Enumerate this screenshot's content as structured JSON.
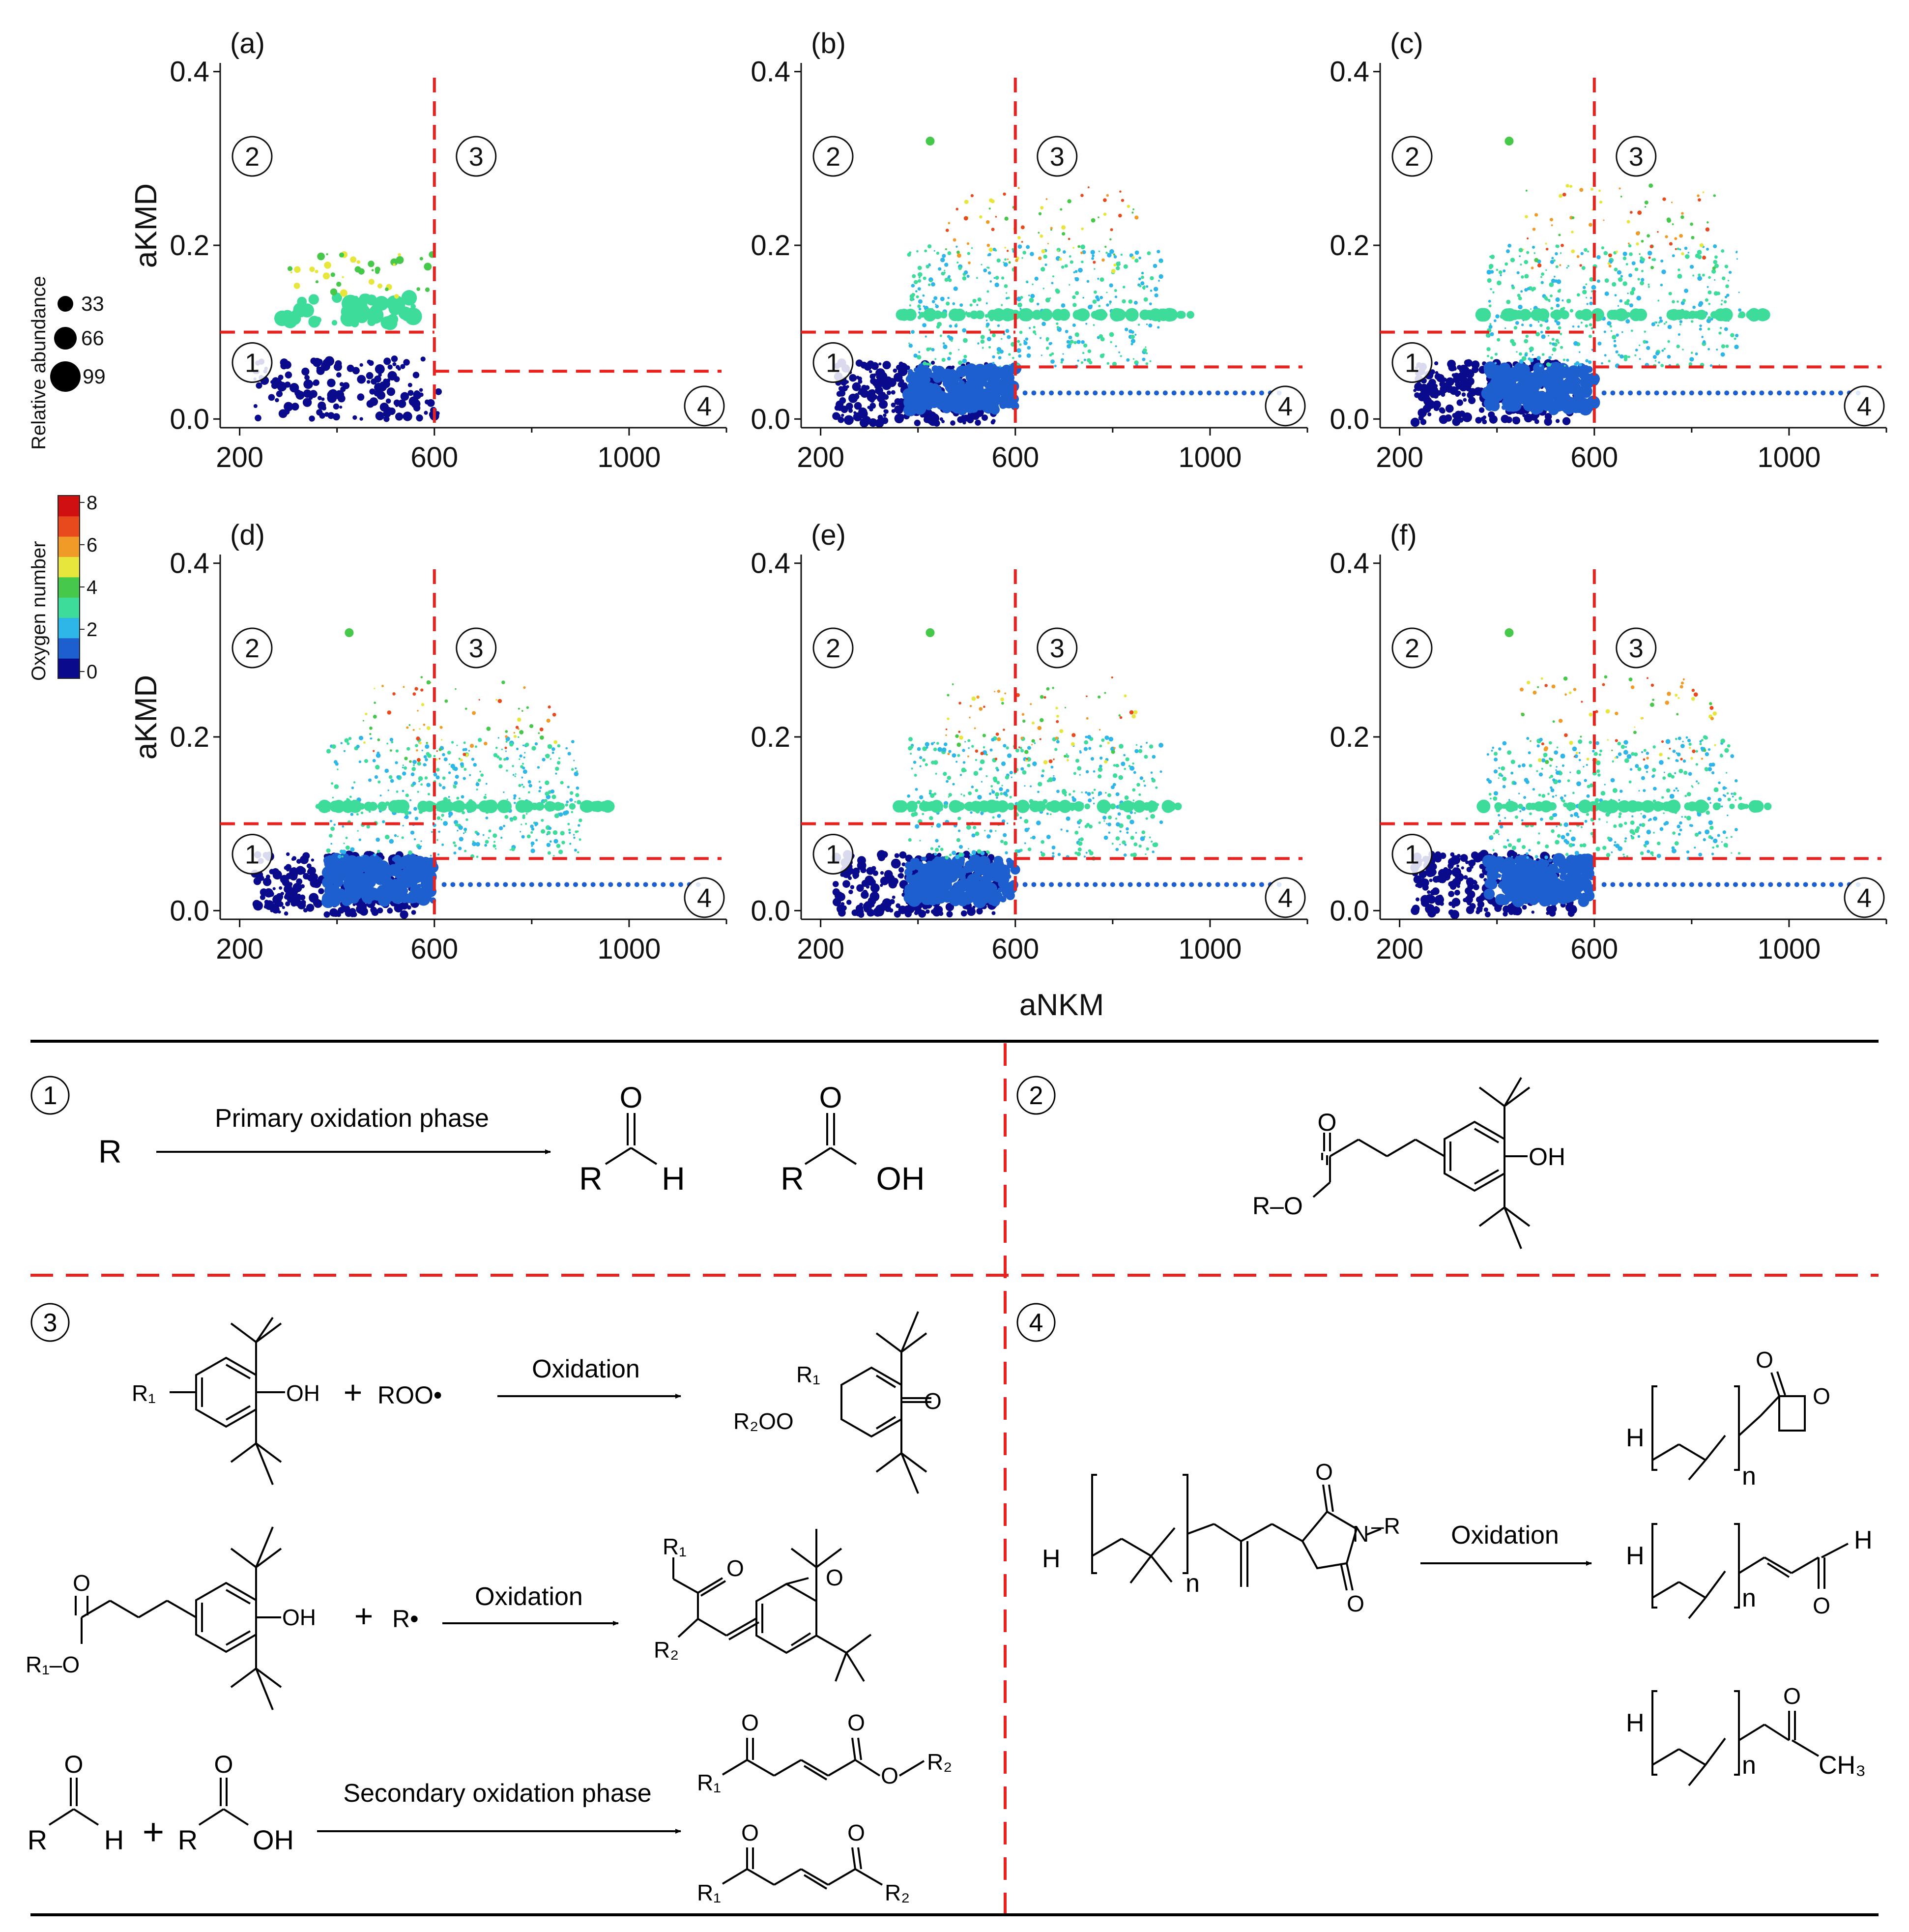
{
  "figure": {
    "axes": {
      "xlabel": "aNKM",
      "ylabel": "aKMD",
      "xticks": [
        200,
        600,
        1000
      ],
      "yticks": [
        "0.0",
        "0.2",
        "0.4"
      ],
      "xlim": [
        160,
        1200
      ],
      "ylim": [
        -0.01,
        0.41
      ]
    },
    "region_markers": [
      "①",
      "②",
      "③",
      "④"
    ],
    "size_legend": {
      "title": "Relative abundance",
      "values": [
        "33",
        "66",
        "99"
      ]
    },
    "color_legend": {
      "title": "Oxygen number",
      "ticks": [
        "0",
        "2",
        "4",
        "6",
        "8"
      ],
      "colors": [
        "#0a0a8c",
        "#1e5fd0",
        "#2fb6e8",
        "#3ddc9a",
        "#46c84a",
        "#e6e63c",
        "#f09a28",
        "#e84a1e",
        "#d01010"
      ]
    },
    "accent_color": "#e8221e"
  },
  "chart_data": [
    {
      "panel": "(a)",
      "type": "scatter",
      "xlabel": "",
      "ylabel": "aKMD",
      "xlim": [
        160,
        1200
      ],
      "ylim": [
        -0.01,
        0.41
      ],
      "boundaries": {
        "x": 600,
        "y_upper": 0.1,
        "y_lower": 0.055
      }
    },
    {
      "panel": "(b)",
      "type": "scatter",
      "xlabel": "",
      "ylabel": "",
      "xlim": [
        160,
        1200
      ],
      "ylim": [
        -0.01,
        0.41
      ],
      "boundaries": {
        "x": 600,
        "y_upper": 0.1,
        "y_lower": 0.06
      }
    },
    {
      "panel": "(c)",
      "type": "scatter",
      "xlabel": "",
      "ylabel": "",
      "xlim": [
        160,
        1200
      ],
      "ylim": [
        -0.01,
        0.41
      ],
      "boundaries": {
        "x": 600,
        "y_upper": 0.1,
        "y_lower": 0.06
      }
    },
    {
      "panel": "(d)",
      "type": "scatter",
      "xlabel": "",
      "ylabel": "aKMD",
      "xlim": [
        160,
        1200
      ],
      "ylim": [
        -0.01,
        0.41
      ],
      "boundaries": {
        "x": 600,
        "y_upper": 0.1,
        "y_lower": 0.06
      }
    },
    {
      "panel": "(e)",
      "type": "scatter",
      "xlabel": "aNKM",
      "ylabel": "",
      "xlim": [
        160,
        1200
      ],
      "ylim": [
        -0.01,
        0.41
      ],
      "boundaries": {
        "x": 600,
        "y_upper": 0.1,
        "y_lower": 0.06
      }
    },
    {
      "panel": "(f)",
      "type": "scatter",
      "xlabel": "",
      "ylabel": "",
      "xlim": [
        160,
        1200
      ],
      "ylim": [
        -0.01,
        0.41
      ],
      "boundaries": {
        "x": 600,
        "y_upper": 0.1,
        "y_lower": 0.06
      }
    }
  ],
  "schemes": {
    "q1": {
      "marker": "①",
      "reactant": "R",
      "arrow_label": "Primary oxidation phase",
      "atoms": {
        "O": "O",
        "H": "H",
        "R": "R",
        "OH": "OH"
      }
    },
    "q2": {
      "marker": "②",
      "atoms": {
        "O": "O",
        "OH": "OH",
        "RO": "R–O"
      }
    },
    "q3": {
      "marker": "③",
      "r1": {
        "plus": "+",
        "radical": "ROO•",
        "arrow": "Oxidation",
        "R1": "R₁",
        "OH": "OH",
        "OO": "R₂OO",
        "O": "O"
      },
      "r2": {
        "plus": "+",
        "radical": "R•",
        "arrow": "Oxidation",
        "R1O": "R₁–O",
        "R1": "R₁",
        "R2": "R₂",
        "O": "O",
        "OH": "OH"
      },
      "r3": {
        "plus": "+",
        "arrow": "Secondary oxidation phase",
        "R": "R",
        "H": "H",
        "O": "O",
        "OH": "OH",
        "R1": "R₁",
        "R2": "R₂"
      }
    },
    "q4": {
      "marker": "④",
      "arrow": "Oxidation",
      "atoms": {
        "H": "H",
        "n": "n",
        "N": "N",
        "R": "–R",
        "O": "O",
        "CH3": "CH₃"
      }
    }
  }
}
